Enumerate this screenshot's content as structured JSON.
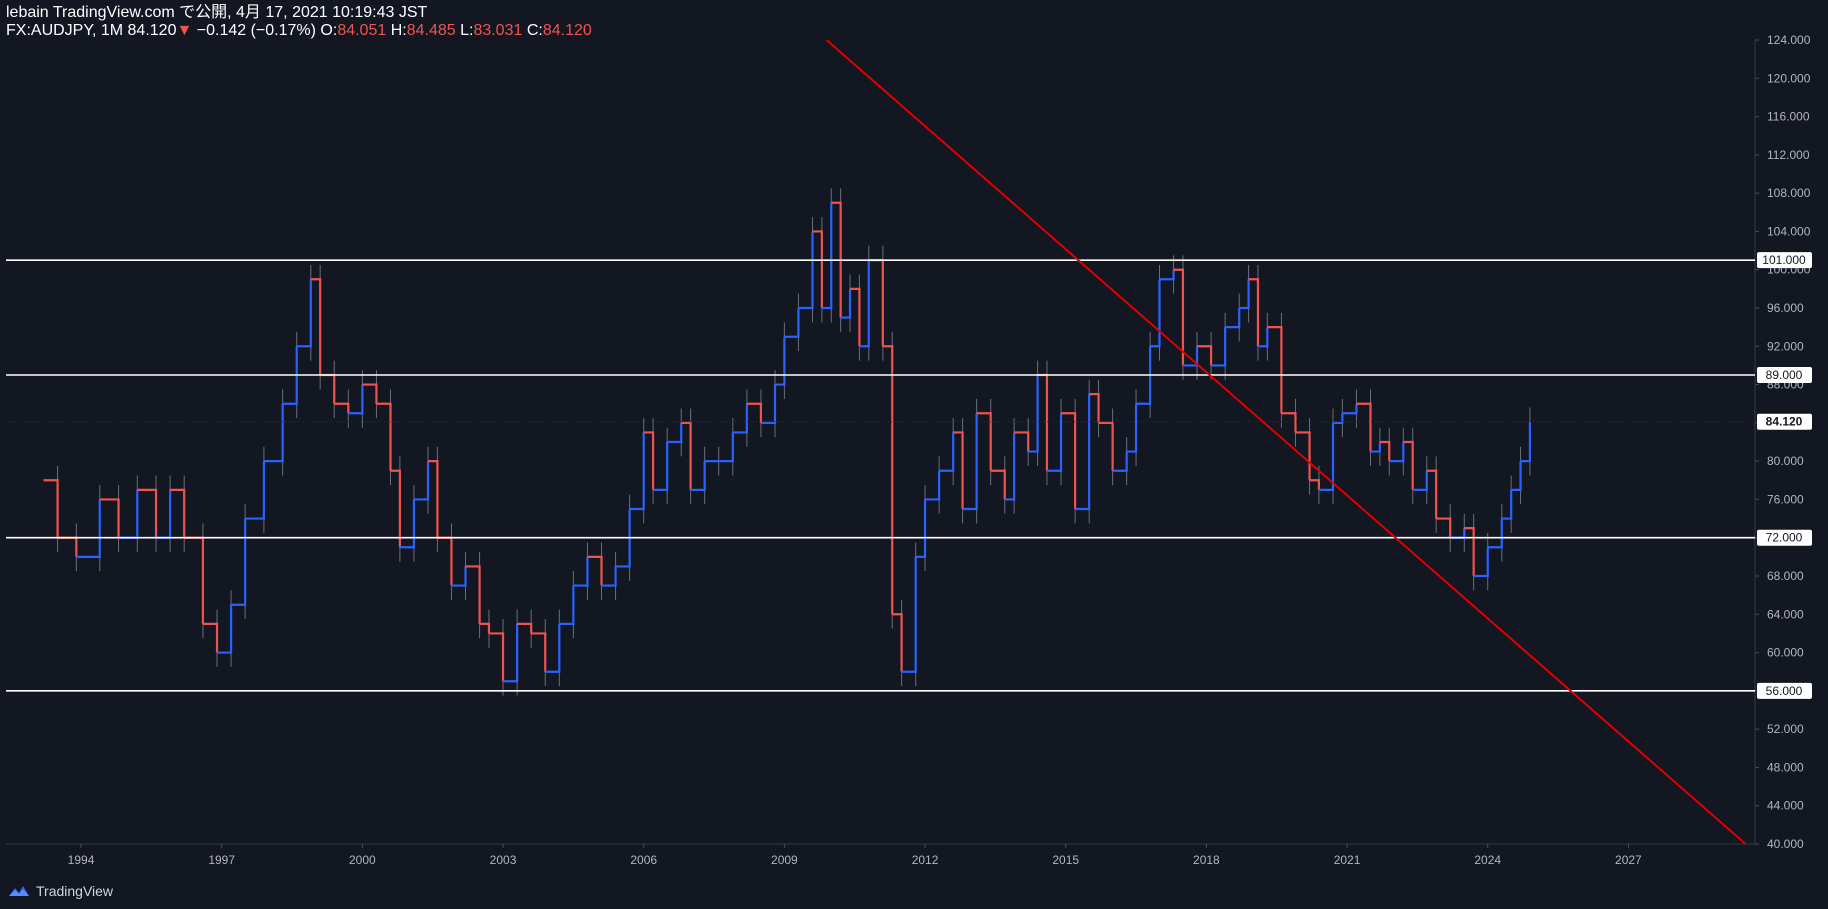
{
  "header": {
    "publisher_line": "lebain TradingView.com で公開, 4月 17, 2021 10:19:43 JST",
    "symbol": "FX:AUDJPY",
    "interval": "1M",
    "last": "84.120",
    "change_arrow": "▼",
    "change": "−0.142 (−0.17%)",
    "open_label": "O:",
    "open": "84.051",
    "high_label": "H:",
    "high": "84.485",
    "low_label": "L:",
    "low": "83.031",
    "close_label": "C:",
    "close": "84.120"
  },
  "footer": {
    "brand": "TradingView",
    "logo_icon": "tradingview-logo-icon"
  },
  "colors": {
    "background": "#131722",
    "up": "#2962ff",
    "down": "#ef5350",
    "axis_text": "#b2b5be",
    "hline": "#ffffff",
    "trendline": "#e00000"
  },
  "chart_data": {
    "type": "ohlc",
    "symbol": "FX:AUDJPY",
    "interval": "1M",
    "x_axis": {
      "ticks": [
        1994,
        1997,
        2000,
        2003,
        2006,
        2009,
        2012,
        2015,
        2018,
        2021,
        2024,
        2027
      ],
      "range": [
        1992.4,
        2029.7
      ]
    },
    "y_axis": {
      "ticks": [
        "40.000",
        "44.000",
        "48.000",
        "52.000",
        "56.000",
        "60.000",
        "64.000",
        "68.000",
        "72.000",
        "76.000",
        "80.000",
        "84.000",
        "88.000",
        "92.000",
        "96.000",
        "100.000",
        "104.000",
        "108.000",
        "112.000",
        "116.000",
        "120.000",
        "124.000"
      ],
      "range": [
        40,
        124
      ]
    },
    "horizontal_levels": [
      {
        "price": 101,
        "label": "101.000"
      },
      {
        "price": 89,
        "label": "89.000"
      },
      {
        "price": 72,
        "label": "72.000"
      },
      {
        "price": 56,
        "label": "56.000"
      }
    ],
    "last_price_label": "84.120",
    "last_price": 84.12,
    "trendline": {
      "points": [
        [
          2009.9,
          124
        ],
        [
          2029.5,
          40
        ]
      ]
    },
    "series_points": [
      [
        1993.2,
        78
      ],
      [
        1993.5,
        72
      ],
      [
        1993.9,
        70
      ],
      [
        1994.4,
        76
      ],
      [
        1994.8,
        72
      ],
      [
        1995.2,
        77
      ],
      [
        1995.6,
        72
      ],
      [
        1995.9,
        77
      ],
      [
        1996.2,
        72
      ],
      [
        1996.6,
        63
      ],
      [
        1996.9,
        60
      ],
      [
        1997.2,
        65
      ],
      [
        1997.5,
        74
      ],
      [
        1997.9,
        80
      ],
      [
        1998.3,
        86
      ],
      [
        1998.6,
        92
      ],
      [
        1998.9,
        99
      ],
      [
        1999.1,
        89
      ],
      [
        1999.4,
        86
      ],
      [
        1999.7,
        85
      ],
      [
        2000.0,
        88
      ],
      [
        2000.3,
        86
      ],
      [
        2000.6,
        79
      ],
      [
        2000.8,
        71
      ],
      [
        2001.1,
        76
      ],
      [
        2001.4,
        80
      ],
      [
        2001.6,
        72
      ],
      [
        2001.9,
        67
      ],
      [
        2002.2,
        69
      ],
      [
        2002.5,
        63
      ],
      [
        2002.7,
        62
      ],
      [
        2003.0,
        57
      ],
      [
        2003.3,
        63
      ],
      [
        2003.6,
        62
      ],
      [
        2003.9,
        58
      ],
      [
        2004.2,
        63
      ],
      [
        2004.5,
        67
      ],
      [
        2004.8,
        70
      ],
      [
        2005.1,
        67
      ],
      [
        2005.4,
        69
      ],
      [
        2005.7,
        75
      ],
      [
        2006.0,
        83
      ],
      [
        2006.2,
        77
      ],
      [
        2006.5,
        82
      ],
      [
        2006.8,
        84
      ],
      [
        2007.0,
        77
      ],
      [
        2007.3,
        80
      ],
      [
        2007.6,
        80
      ],
      [
        2007.9,
        83
      ],
      [
        2008.2,
        86
      ],
      [
        2008.5,
        84
      ],
      [
        2008.8,
        88
      ],
      [
        2009.0,
        93
      ],
      [
        2009.3,
        96
      ],
      [
        2009.6,
        104
      ],
      [
        2009.8,
        96
      ],
      [
        2010.0,
        107
      ],
      [
        2010.2,
        95
      ],
      [
        2010.4,
        98
      ],
      [
        2010.6,
        92
      ],
      [
        2010.8,
        101
      ],
      [
        2011.1,
        92
      ],
      [
        2011.3,
        64
      ],
      [
        2011.5,
        58
      ],
      [
        2011.8,
        70
      ],
      [
        2012.0,
        76
      ],
      [
        2012.3,
        79
      ],
      [
        2012.6,
        83
      ],
      [
        2012.8,
        75
      ],
      [
        2013.1,
        85
      ],
      [
        2013.4,
        79
      ],
      [
        2013.7,
        76
      ],
      [
        2013.9,
        83
      ],
      [
        2014.2,
        81
      ],
      [
        2014.4,
        89
      ],
      [
        2014.6,
        79
      ],
      [
        2014.9,
        85
      ],
      [
        2015.2,
        75
      ],
      [
        2015.5,
        87
      ],
      [
        2015.7,
        84
      ],
      [
        2016.0,
        79
      ],
      [
        2016.3,
        81
      ],
      [
        2016.5,
        86
      ],
      [
        2016.8,
        92
      ],
      [
        2017.0,
        99
      ],
      [
        2017.3,
        100
      ],
      [
        2017.5,
        90
      ],
      [
        2017.8,
        92
      ],
      [
        2018.1,
        90
      ],
      [
        2018.4,
        94
      ],
      [
        2018.7,
        96
      ],
      [
        2018.9,
        99
      ],
      [
        2019.1,
        92
      ],
      [
        2019.3,
        94
      ],
      [
        2019.6,
        85
      ],
      [
        2019.9,
        83
      ],
      [
        2020.2,
        78
      ],
      [
        2020.4,
        77
      ],
      [
        2020.7,
        84
      ],
      [
        2020.9,
        85
      ],
      [
        2021.2,
        86
      ],
      [
        2021.5,
        81
      ],
      [
        2021.7,
        82
      ],
      [
        2021.9,
        80
      ],
      [
        2022.2,
        82
      ],
      [
        2022.4,
        77
      ],
      [
        2022.7,
        79
      ],
      [
        2022.9,
        74
      ],
      [
        2023.2,
        72
      ],
      [
        2023.5,
        73
      ],
      [
        2023.7,
        68
      ],
      [
        2024.0,
        71
      ],
      [
        2024.3,
        74
      ],
      [
        2024.5,
        77
      ],
      [
        2024.7,
        80
      ],
      [
        2024.9,
        84.12
      ]
    ]
  }
}
